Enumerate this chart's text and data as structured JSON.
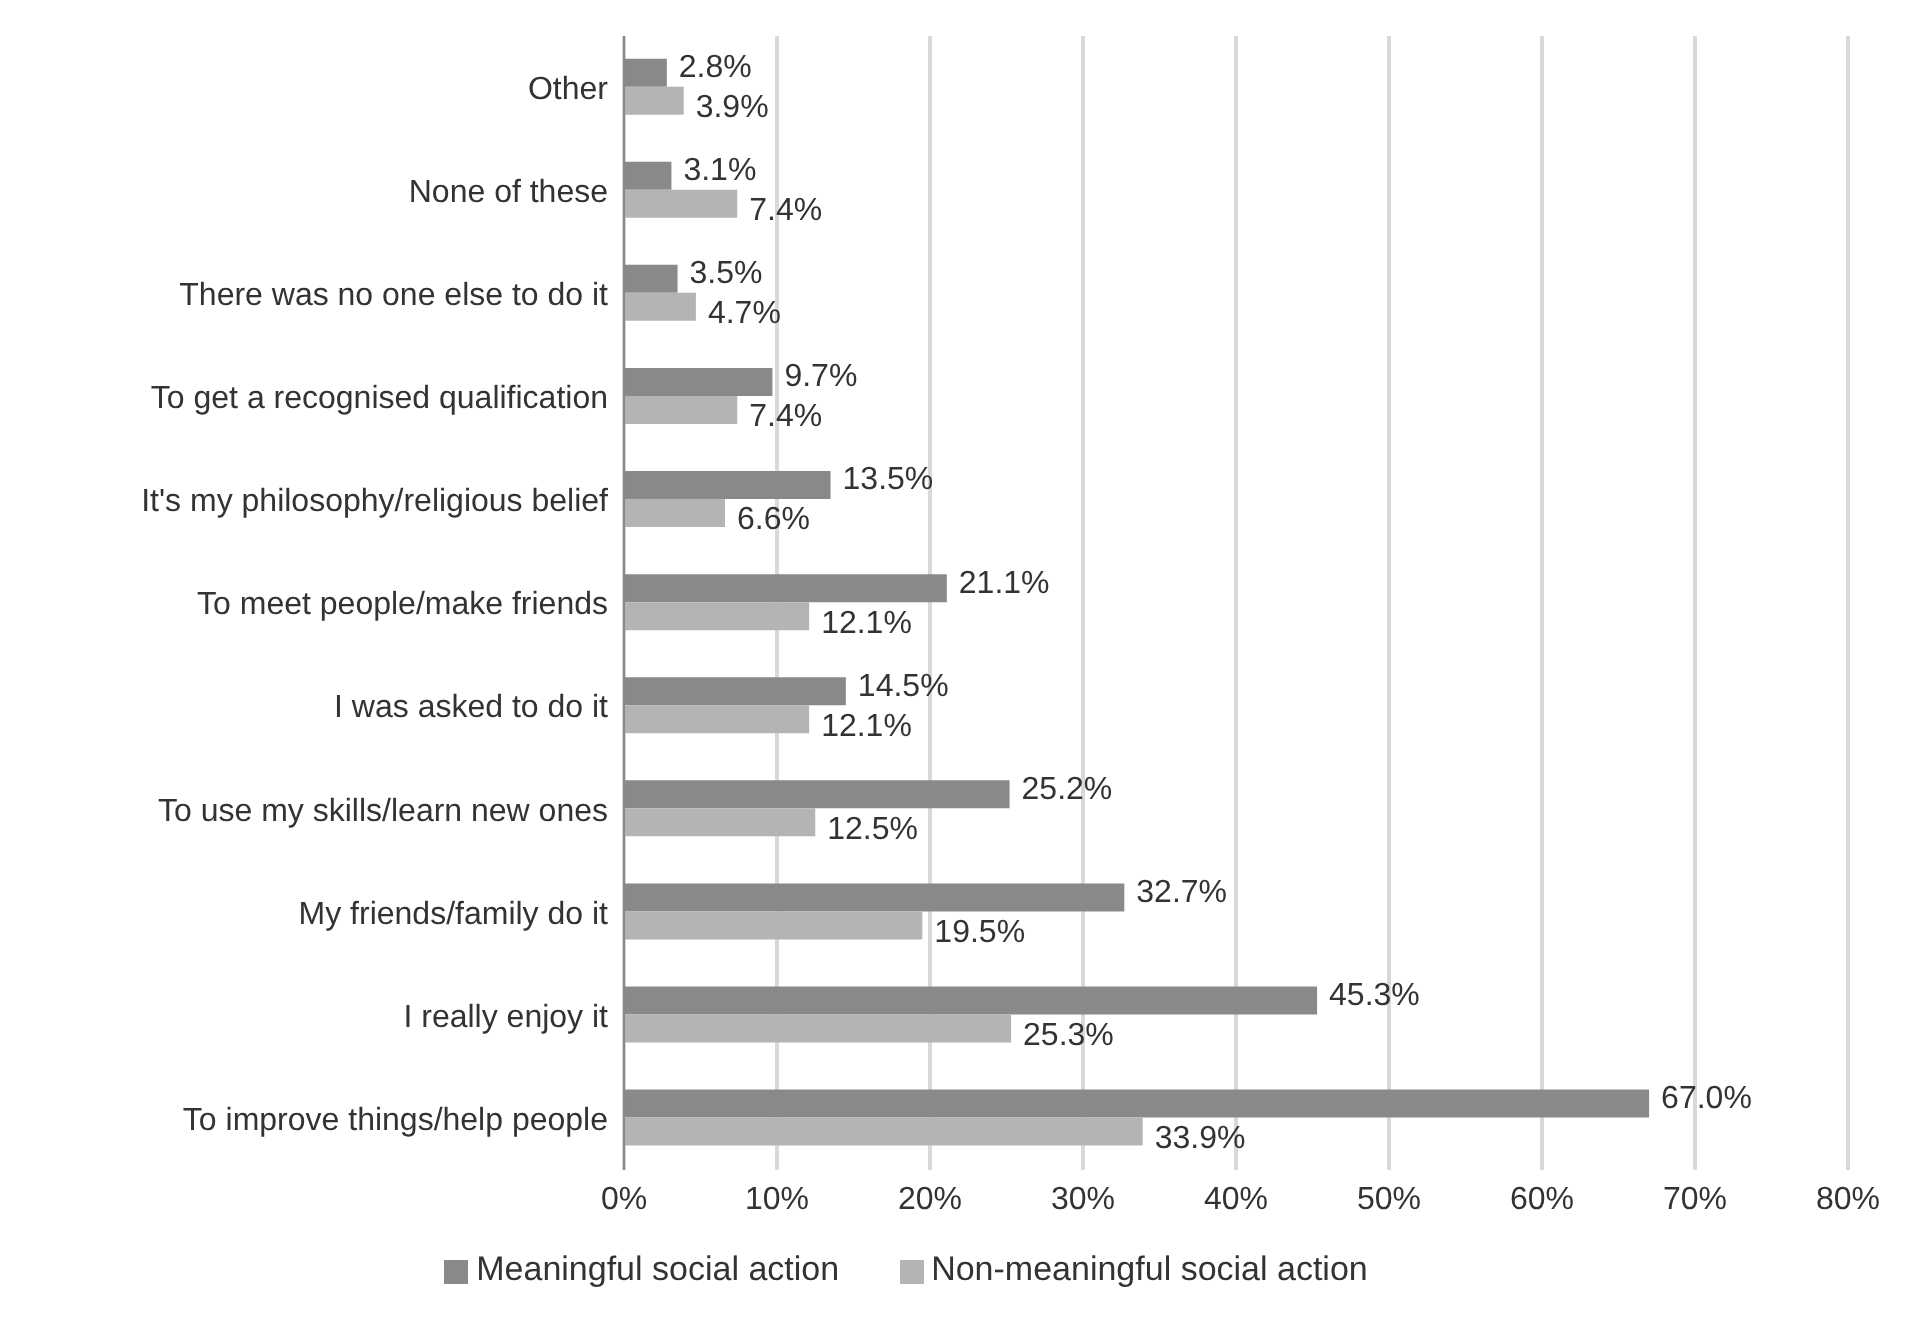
{
  "chart_data": {
    "type": "bar",
    "orientation": "horizontal",
    "categories": [
      "Other",
      "None of these",
      "There was no one else to do it",
      "To get a recognised qualification",
      "It's my philosophy/religious belief",
      "To meet people/make friends",
      "I was asked to do it",
      "To use my skills/learn new ones",
      "My friends/family do it",
      "I really enjoy it",
      "To improve things/help people"
    ],
    "series": [
      {
        "name": "Meaningful social action",
        "color": "#898989",
        "values": [
          2.8,
          3.1,
          3.5,
          9.7,
          13.5,
          21.1,
          14.5,
          25.2,
          32.7,
          45.3,
          67.0
        ],
        "value_labels": [
          "2.8%",
          "3.1%",
          "3.5%",
          "9.7%",
          "13.5%",
          "21.1%",
          "14.5%",
          "25.2%",
          "32.7%",
          "45.3%",
          "67.0%"
        ]
      },
      {
        "name": "Non-meaningful social action",
        "color": "#b4b4b4",
        "values": [
          3.9,
          7.4,
          4.7,
          7.4,
          6.6,
          12.1,
          12.1,
          12.5,
          19.5,
          25.3,
          33.9
        ],
        "value_labels": [
          "3.9%",
          "7.4%",
          "4.7%",
          "7.4%",
          "6.6%",
          "12.1%",
          "12.1%",
          "12.5%",
          "19.5%",
          "25.3%",
          "33.9%"
        ]
      }
    ],
    "xlim": [
      0,
      80
    ],
    "xticks": [
      {
        "value": 0,
        "label": "0%"
      },
      {
        "value": 10,
        "label": "10%"
      },
      {
        "value": 20,
        "label": "20%"
      },
      {
        "value": 30,
        "label": "30%"
      },
      {
        "value": 40,
        "label": "40%"
      },
      {
        "value": 50,
        "label": "50%"
      },
      {
        "value": 60,
        "label": "60%"
      },
      {
        "value": 70,
        "label": "70%"
      },
      {
        "value": 80,
        "label": "80%"
      }
    ],
    "grid": "x",
    "legend": "bottom"
  }
}
